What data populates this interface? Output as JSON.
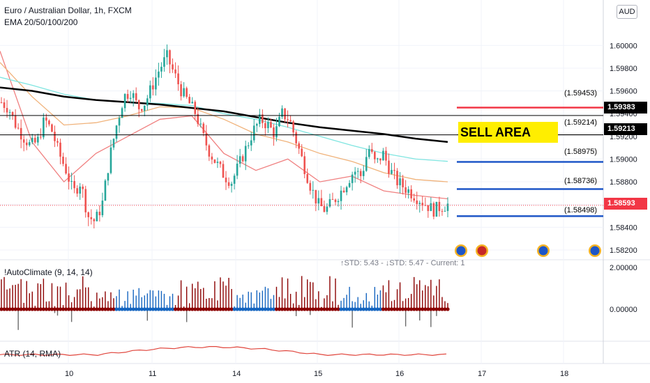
{
  "header": {
    "title": "Euro / Australian Dollar, 1h, FXCM",
    "indicator": "EMA 20/50/100/200",
    "currency": "AUD"
  },
  "sell_area": {
    "label": "SELL AREA",
    "color": "#ffee00",
    "top": 1.59453,
    "bottom": 1.59214
  },
  "levels": [
    {
      "value": 1.59453,
      "label": "(1.59453)",
      "color": "#f23645"
    },
    {
      "value": 1.59214,
      "label": "(1.59214)",
      "color": "#000000"
    },
    {
      "value": 1.58975,
      "label": "(1.58975)",
      "color": "#1e56c7"
    },
    {
      "value": 1.58736,
      "label": "(1.58736)",
      "color": "#1e56c7"
    },
    {
      "value": 1.58498,
      "label": "(1.58498)",
      "color": "#1e56c7"
    }
  ],
  "horizontal_lines": [
    {
      "value": 1.59383,
      "label": "1.59383",
      "color": "#000000"
    },
    {
      "value": 1.59213,
      "label": "1.59213",
      "color": "#000000"
    }
  ],
  "last_price": {
    "value": 1.58593,
    "label": "1.58593",
    "color": "#f23645"
  },
  "std_readout": "↑STD: 5.43 - ↓STD: 5.47 - Current: 1",
  "panes": {
    "autoclimate": {
      "title": "!AutoClimate (9, 14, 14)"
    },
    "atr": {
      "title": "ATR (14, RMA)"
    }
  },
  "chart_data": {
    "type": "candlestick",
    "y_ticks": [
      "1.60000",
      "1.59800",
      "1.59600",
      "1.59400",
      "1.59200",
      "1.59000",
      "1.58800",
      "1.58600",
      "1.58400",
      "1.58200"
    ],
    "ylim": [
      1.5812,
      1.604
    ],
    "x_ticks": [
      "10",
      "11",
      "14",
      "15",
      "16",
      "17",
      "18"
    ],
    "close_path": [
      1.595,
      1.5945,
      1.593,
      1.592,
      1.5912,
      1.5915,
      1.5935,
      1.5925,
      1.5905,
      1.589,
      1.587,
      1.588,
      1.585,
      1.5845,
      1.586,
      1.59,
      1.593,
      1.5955,
      1.596,
      1.5945,
      1.595,
      1.5965,
      1.598,
      1.599,
      1.5975,
      1.596,
      1.595,
      1.594,
      1.592,
      1.5905,
      1.5895,
      1.5885,
      1.588,
      1.5895,
      1.591,
      1.5925,
      1.5935,
      1.593,
      1.5922,
      1.594,
      1.5935,
      1.5915,
      1.5895,
      1.5875,
      1.586,
      1.5855,
      1.5862,
      1.587,
      1.588,
      1.589,
      1.5885,
      1.591,
      1.5895,
      1.5905,
      1.589,
      1.588,
      1.5875,
      1.587,
      1.5865,
      1.586,
      1.5855,
      1.5858,
      1.586
    ],
    "ema_series": [
      {
        "color": "#f08080",
        "values": [
          1.5995,
          1.5915,
          1.588,
          1.5905,
          1.592,
          1.5935,
          1.5938,
          1.5905,
          1.589,
          1.59,
          1.588,
          1.5885,
          1.5872,
          1.5868,
          1.5865
        ]
      },
      {
        "color": "#f0b27a",
        "values": [
          1.5985,
          1.5955,
          1.593,
          1.5932,
          1.5938,
          1.5946,
          1.5945,
          1.5935,
          1.5922,
          1.5915,
          1.5905,
          1.5898,
          1.5888,
          1.5882,
          1.588
        ]
      },
      {
        "color": "#7fe5e0",
        "values": [
          1.5972,
          1.5965,
          1.5957,
          1.5952,
          1.595,
          1.5949,
          1.5947,
          1.594,
          1.5935,
          1.5928,
          1.592,
          1.5912,
          1.5905,
          1.59,
          1.5898
        ]
      },
      {
        "color": "#000000",
        "values": [
          1.5963,
          1.596,
          1.5955,
          1.5952,
          1.595,
          1.5948,
          1.5945,
          1.5942,
          1.5937,
          1.5932,
          1.5928,
          1.5925,
          1.5922,
          1.5918,
          1.5915
        ]
      }
    ],
    "autoclimate_ticks": [
      "2.00000",
      "0.00000"
    ],
    "autoclimate_ylim": [
      -1.2,
      2.2
    ],
    "atr_ticks": [],
    "colors": {
      "up": "#26a69a",
      "down": "#ef5350",
      "bar_up": "#1565c0",
      "bar_down": "#8b0000"
    }
  }
}
